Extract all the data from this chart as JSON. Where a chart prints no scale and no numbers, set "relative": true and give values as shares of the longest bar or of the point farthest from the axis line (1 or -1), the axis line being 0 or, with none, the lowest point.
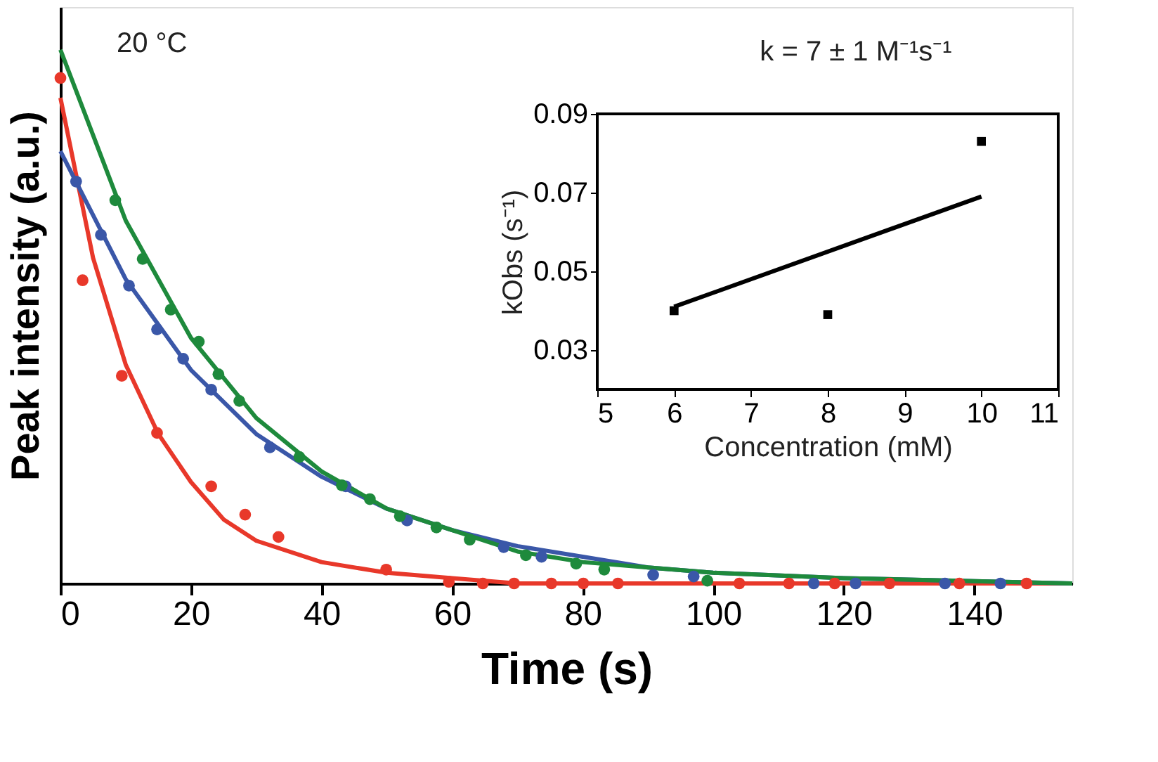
{
  "chart_data": [
    {
      "type": "scatter",
      "xlabel": "Time (s)",
      "ylabel": "Peak intensity (a.u.)",
      "xlim": [
        0,
        155
      ],
      "xticks": [
        0,
        20,
        40,
        60,
        80,
        100,
        120,
        140
      ],
      "relative": true,
      "tick_labels": "x",
      "grid": false,
      "marker": "circle",
      "annotations": [
        "20 °C"
      ],
      "series": [
        {
          "color": "#e8382a",
          "x": [
            0,
            3.4,
            9.4,
            14.8,
            23.1,
            28.3,
            33.4,
            49.9,
            59.5,
            64.7,
            69.5,
            75.2,
            80.1,
            85.4,
            104,
            111.6,
            118.6,
            127,
            137.7,
            148
          ],
          "values": [
            0.947,
            0.568,
            0.389,
            0.282,
            0.182,
            0.129,
            0.087,
            0.026,
            0.003,
            0,
            0,
            0,
            0,
            0,
            0,
            0,
            0,
            0,
            0,
            0
          ]
        },
        {
          "color": "#3a57a8",
          "x": [
            2.4,
            6.2,
            10.5,
            14.8,
            18.8,
            23.1,
            32.1,
            43.7,
            53.1,
            67.9,
            73.7,
            90.8,
            97,
            115.4,
            121.8,
            135.5,
            144
          ],
          "values": [
            0.753,
            0.653,
            0.558,
            0.476,
            0.421,
            0.363,
            0.255,
            0.182,
            0.118,
            0.068,
            0.05,
            0.016,
            0.013,
            0,
            0,
            0,
            0
          ]
        },
        {
          "color": "#1e8a3c",
          "x": [
            8.4,
            12.6,
            16.9,
            21.2,
            24.2,
            27.4,
            36.6,
            43.1,
            47.4,
            52,
            57.6,
            62.7,
            71.3,
            79,
            83.3,
            99.1
          ],
          "values": [
            0.718,
            0.608,
            0.513,
            0.453,
            0.392,
            0.342,
            0.237,
            0.184,
            0.158,
            0.126,
            0.105,
            0.082,
            0.053,
            0.037,
            0.026,
            0.005
          ]
        },
        {
          "type": "line",
          "marker": "none",
          "color": "#e8382a",
          "x": [
            0,
            5,
            10,
            15,
            20,
            25,
            30,
            40,
            50,
            60,
            70,
            155
          ],
          "values": [
            0.91,
            0.61,
            0.41,
            0.28,
            0.19,
            0.12,
            0.08,
            0.04,
            0.02,
            0.01,
            0,
            0
          ]
        },
        {
          "type": "line",
          "marker": "none",
          "color": "#3a57a8",
          "x": [
            0,
            10,
            20,
            30,
            40,
            50,
            60,
            70,
            80,
            90,
            100,
            120,
            155
          ],
          "values": [
            0.81,
            0.57,
            0.4,
            0.28,
            0.2,
            0.14,
            0.1,
            0.07,
            0.05,
            0.03,
            0.02,
            0.01,
            0
          ]
        },
        {
          "type": "line",
          "marker": "none",
          "color": "#1e8a3c",
          "x": [
            0,
            10,
            20,
            30,
            40,
            50,
            60,
            70,
            80,
            90,
            100,
            120,
            155
          ],
          "values": [
            1.0,
            0.68,
            0.46,
            0.31,
            0.21,
            0.14,
            0.1,
            0.06,
            0.04,
            0.03,
            0.02,
            0.01,
            0
          ]
        }
      ]
    },
    {
      "type": "scatter",
      "title": "k = 7 ± 1 M⁻¹s⁻¹",
      "xlabel": "Concentration (mM)",
      "ylabel": "kObs (s⁻¹)",
      "xlim": [
        5,
        11
      ],
      "xticks": [
        5,
        6,
        7,
        8,
        9,
        10,
        11
      ],
      "ylim": [
        0.02,
        0.09
      ],
      "yticks": [
        0.03,
        0.05,
        0.07,
        0.09
      ],
      "grid": false,
      "marker": "square",
      "series": [
        {
          "color": "#000000",
          "x": [
            6,
            8,
            10
          ],
          "values": [
            0.04,
            0.039,
            0.083
          ]
        },
        {
          "type": "line",
          "marker": "none",
          "color": "#000000",
          "x": [
            6,
            10
          ],
          "values": [
            0.041,
            0.069
          ]
        }
      ]
    }
  ]
}
